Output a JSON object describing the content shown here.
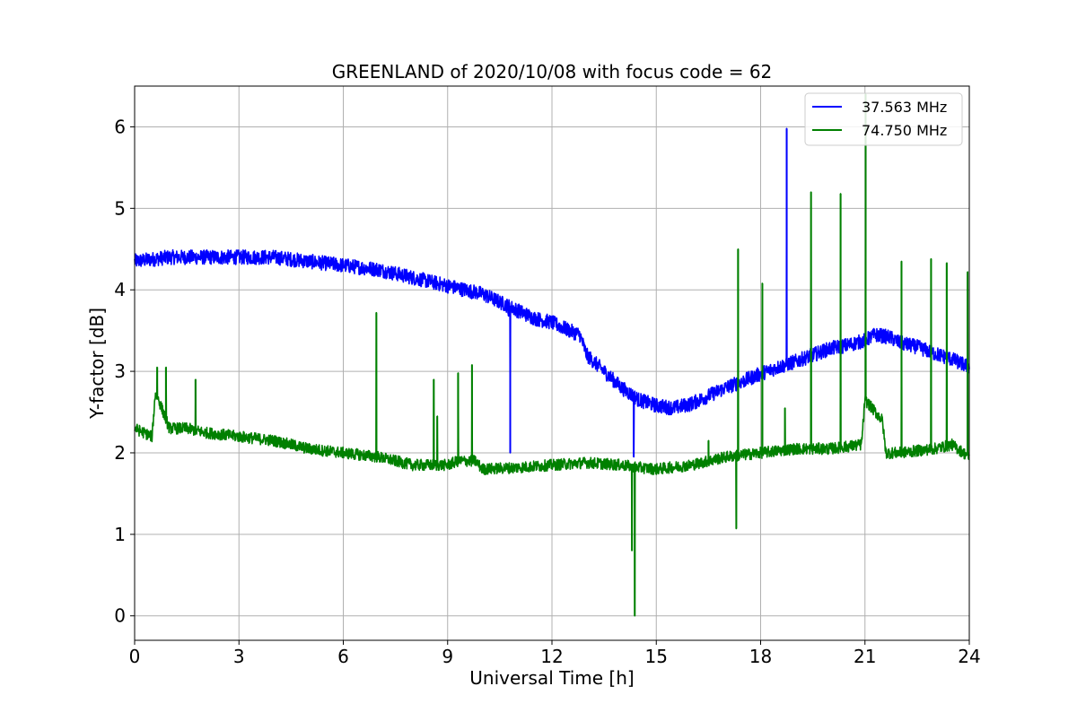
{
  "chart_data": {
    "type": "line",
    "title": "GREENLAND of 2020/10/08 with focus code = 62",
    "xlabel": "Universal Time [h]",
    "ylabel": "Y-factor [dB]",
    "xlim": [
      0,
      24
    ],
    "ylim": [
      -0.3,
      6.5
    ],
    "xticks": [
      0,
      3,
      6,
      9,
      12,
      15,
      18,
      21,
      24
    ],
    "yticks": [
      0,
      1,
      2,
      3,
      4,
      5,
      6
    ],
    "grid": true,
    "legend_position": "top-right",
    "series": [
      {
        "name": "37.563 MHz",
        "color": "#0000ff",
        "noise": 0.09,
        "x": [
          0,
          1,
          2,
          3,
          4,
          5,
          6,
          7,
          8,
          9,
          9.5,
          10,
          10.5,
          11,
          11.5,
          12,
          12.5,
          12.8,
          13,
          13.5,
          14,
          14.5,
          15,
          15.5,
          16,
          16.5,
          17,
          17.5,
          18,
          18.5,
          19,
          19.5,
          20,
          20.5,
          21,
          21.3,
          21.7,
          22,
          22.5,
          23,
          23.5,
          24
        ],
        "y": [
          4.35,
          4.4,
          4.4,
          4.4,
          4.4,
          4.35,
          4.3,
          4.25,
          4.15,
          4.05,
          4.0,
          3.95,
          3.85,
          3.75,
          3.65,
          3.6,
          3.5,
          3.45,
          3.2,
          3.0,
          2.8,
          2.65,
          2.58,
          2.55,
          2.6,
          2.7,
          2.8,
          2.88,
          2.97,
          3.05,
          3.12,
          3.2,
          3.28,
          3.32,
          3.38,
          3.45,
          3.42,
          3.35,
          3.3,
          3.22,
          3.15,
          3.05
        ],
        "spikes": [
          {
            "x": 10.75,
            "y": 3.68
          },
          {
            "x": 10.8,
            "y": 2.0
          },
          {
            "x": 14.35,
            "y": 1.95
          },
          {
            "x": 18.75,
            "y": 5.98
          }
        ]
      },
      {
        "name": "74.750 MHz",
        "color": "#008000",
        "noise": 0.07,
        "x": [
          0,
          0.5,
          0.6,
          1.0,
          1.5,
          2,
          3,
          4,
          5,
          6,
          7,
          8,
          9,
          9.3,
          9.8,
          10,
          11,
          12,
          13,
          14,
          14.5,
          15,
          16,
          17,
          18,
          19,
          20,
          20.9,
          21.0,
          21.5,
          21.6,
          22,
          23,
          23.5,
          24
        ],
        "y": [
          2.3,
          2.2,
          2.75,
          2.3,
          2.3,
          2.25,
          2.2,
          2.15,
          2.05,
          2.0,
          1.95,
          1.85,
          1.85,
          1.9,
          1.9,
          1.8,
          1.82,
          1.85,
          1.88,
          1.85,
          1.82,
          1.8,
          1.85,
          1.95,
          2.0,
          2.05,
          2.05,
          2.1,
          2.65,
          2.4,
          2.0,
          2.0,
          2.05,
          2.1,
          1.95
        ],
        "spikes": [
          {
            "x": 0.65,
            "y": 3.05
          },
          {
            "x": 0.9,
            "y": 3.05
          },
          {
            "x": 1.75,
            "y": 2.9
          },
          {
            "x": 6.95,
            "y": 3.72
          },
          {
            "x": 8.6,
            "y": 2.9
          },
          {
            "x": 8.7,
            "y": 2.45
          },
          {
            "x": 9.3,
            "y": 2.98
          },
          {
            "x": 9.7,
            "y": 3.08
          },
          {
            "x": 14.38,
            "y": 0.0
          },
          {
            "x": 14.3,
            "y": 0.8
          },
          {
            "x": 16.5,
            "y": 2.15
          },
          {
            "x": 17.35,
            "y": 4.5
          },
          {
            "x": 17.3,
            "y": 1.07
          },
          {
            "x": 18.05,
            "y": 4.08
          },
          {
            "x": 18.7,
            "y": 2.55
          },
          {
            "x": 19.45,
            "y": 5.2
          },
          {
            "x": 20.3,
            "y": 5.18
          },
          {
            "x": 21.02,
            "y": 6.4
          },
          {
            "x": 22.05,
            "y": 4.35
          },
          {
            "x": 22.9,
            "y": 4.38
          },
          {
            "x": 23.35,
            "y": 4.33
          },
          {
            "x": 23.95,
            "y": 4.22
          }
        ]
      }
    ]
  }
}
